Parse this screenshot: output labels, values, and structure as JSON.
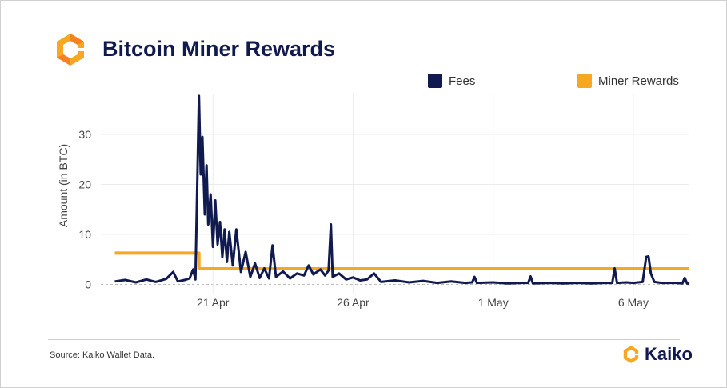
{
  "header": {
    "title": "Bitcoin Miner Rewards"
  },
  "footer": {
    "source": "Source: Kaiko Wallet Data.",
    "brand": "Kaiko"
  },
  "colors": {
    "fees": "#111a4f",
    "rewards": "#f7a823",
    "title": "#111a4f"
  },
  "chart_data": {
    "type": "line",
    "title": "Bitcoin Miner Rewards",
    "xlabel": "",
    "ylabel": "Amount (in BTC)",
    "ylim": [
      -2,
      38
    ],
    "yticks": [
      0,
      10,
      20,
      30
    ],
    "xlim": [
      "2024-04-17",
      "2024-05-08"
    ],
    "xticks": [
      {
        "label": "21 Apr",
        "date": "2024-04-21"
      },
      {
        "label": "26 Apr",
        "date": "2024-04-26"
      },
      {
        "label": "1 May",
        "date": "2024-05-01"
      },
      {
        "label": "6 May",
        "date": "2024-05-06"
      }
    ],
    "legend": "top",
    "series": [
      {
        "name": "Fees",
        "color": "#111a4f",
        "points": [
          [
            "2024-04-17 12:00",
            0.6
          ],
          [
            "2024-04-17 21:00",
            0.9
          ],
          [
            "2024-04-18 06:00",
            0.4
          ],
          [
            "2024-04-18 15:00",
            1.0
          ],
          [
            "2024-04-18 23:00",
            0.5
          ],
          [
            "2024-04-19 08:00",
            1.1
          ],
          [
            "2024-04-19 14:00",
            2.5
          ],
          [
            "2024-04-19 18:00",
            0.6
          ],
          [
            "2024-04-20 00:00",
            0.9
          ],
          [
            "2024-04-20 04:00",
            1.2
          ],
          [
            "2024-04-20 07:00",
            3.0
          ],
          [
            "2024-04-20 09:00",
            1.0
          ],
          [
            "2024-04-20 12:00",
            37.7
          ],
          [
            "2024-04-20 13:30",
            22.0
          ],
          [
            "2024-04-20 15:00",
            29.5
          ],
          [
            "2024-04-20 17:00",
            14.0
          ],
          [
            "2024-04-20 18:30",
            23.8
          ],
          [
            "2024-04-20 20:00",
            12.0
          ],
          [
            "2024-04-20 22:00",
            18.0
          ],
          [
            "2024-04-21 00:00",
            7.5
          ],
          [
            "2024-04-21 02:00",
            16.8
          ],
          [
            "2024-04-21 04:00",
            8.0
          ],
          [
            "2024-04-21 06:00",
            12.5
          ],
          [
            "2024-04-21 08:00",
            5.5
          ],
          [
            "2024-04-21 10:00",
            11.0
          ],
          [
            "2024-04-21 12:00",
            4.5
          ],
          [
            "2024-04-21 14:00",
            10.5
          ],
          [
            "2024-04-21 17:00",
            3.8
          ],
          [
            "2024-04-21 20:00",
            11.0
          ],
          [
            "2024-04-22 00:00",
            2.5
          ],
          [
            "2024-04-22 04:00",
            6.5
          ],
          [
            "2024-04-22 08:00",
            1.5
          ],
          [
            "2024-04-22 12:00",
            4.2
          ],
          [
            "2024-04-22 16:00",
            1.3
          ],
          [
            "2024-04-22 20:00",
            3.2
          ],
          [
            "2024-04-23 00:00",
            1.2
          ],
          [
            "2024-04-23 03:00",
            7.8
          ],
          [
            "2024-04-23 06:00",
            1.5
          ],
          [
            "2024-04-23 12:00",
            2.6
          ],
          [
            "2024-04-23 18:00",
            1.2
          ],
          [
            "2024-04-24 00:00",
            2.2
          ],
          [
            "2024-04-24 06:00",
            1.8
          ],
          [
            "2024-04-24 10:00",
            3.8
          ],
          [
            "2024-04-24 14:00",
            2.0
          ],
          [
            "2024-04-24 20:00",
            3.0
          ],
          [
            "2024-04-25 00:00",
            1.8
          ],
          [
            "2024-04-25 03:00",
            2.8
          ],
          [
            "2024-04-25 05:00",
            12.0
          ],
          [
            "2024-04-25 06:30",
            1.5
          ],
          [
            "2024-04-25 12:00",
            2.2
          ],
          [
            "2024-04-25 18:00",
            1.0
          ],
          [
            "2024-04-26 00:00",
            1.4
          ],
          [
            "2024-04-26 06:00",
            0.8
          ],
          [
            "2024-04-26 12:00",
            1.0
          ],
          [
            "2024-04-26 18:00",
            2.2
          ],
          [
            "2024-04-27 00:00",
            0.5
          ],
          [
            "2024-04-27 12:00",
            0.8
          ],
          [
            "2024-04-28 00:00",
            0.4
          ],
          [
            "2024-04-28 12:00",
            0.7
          ],
          [
            "2024-04-29 00:00",
            0.3
          ],
          [
            "2024-04-29 12:00",
            0.6
          ],
          [
            "2024-04-30 00:00",
            0.3
          ],
          [
            "2024-04-30 06:00",
            0.4
          ],
          [
            "2024-04-30 08:00",
            1.5
          ],
          [
            "2024-04-30 10:00",
            0.3
          ],
          [
            "2024-05-01 00:00",
            0.4
          ],
          [
            "2024-05-01 12:00",
            0.2
          ],
          [
            "2024-05-02 00:00",
            0.3
          ],
          [
            "2024-05-02 06:00",
            0.3
          ],
          [
            "2024-05-02 08:00",
            1.6
          ],
          [
            "2024-05-02 10:00",
            0.2
          ],
          [
            "2024-05-03 00:00",
            0.3
          ],
          [
            "2024-05-03 12:00",
            0.2
          ],
          [
            "2024-05-04 00:00",
            0.3
          ],
          [
            "2024-05-04 12:00",
            0.2
          ],
          [
            "2024-05-05 00:00",
            0.3
          ],
          [
            "2024-05-05 06:00",
            0.3
          ],
          [
            "2024-05-05 08:00",
            3.2
          ],
          [
            "2024-05-05 10:00",
            0.3
          ],
          [
            "2024-05-05 18:00",
            0.4
          ],
          [
            "2024-05-06 00:00",
            0.3
          ],
          [
            "2024-05-06 08:00",
            0.5
          ],
          [
            "2024-05-06 11:00",
            5.5
          ],
          [
            "2024-05-06 13:00",
            5.6
          ],
          [
            "2024-05-06 15:00",
            2.2
          ],
          [
            "2024-05-06 18:00",
            0.5
          ],
          [
            "2024-05-07 00:00",
            0.3
          ],
          [
            "2024-05-07 06:00",
            0.3
          ],
          [
            "2024-05-07 12:00",
            0.3
          ],
          [
            "2024-05-07 18:00",
            0.2
          ],
          [
            "2024-05-07 20:00",
            1.3
          ],
          [
            "2024-05-07 22:00",
            0.2
          ],
          [
            "2024-05-08 00:00",
            0.1
          ]
        ]
      },
      {
        "name": "Miner Rewards",
        "color": "#f7a823",
        "points": [
          [
            "2024-04-17 12:00",
            6.25
          ],
          [
            "2024-04-20 12:00",
            6.25
          ],
          [
            "2024-04-20 12:00",
            3.125
          ],
          [
            "2024-05-08 00:00",
            3.125
          ]
        ]
      }
    ]
  }
}
